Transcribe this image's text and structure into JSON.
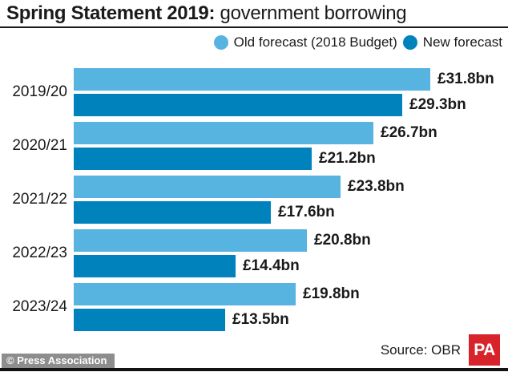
{
  "header": {
    "title_bold": "Spring Statement 2019:",
    "title_rest": " government borrowing"
  },
  "legend": {
    "items": [
      {
        "label": "Old forecast (2018 Budget)",
        "color": "#57b3df"
      },
      {
        "label": "New forecast",
        "color": "#0082bd"
      }
    ]
  },
  "chart_data": {
    "type": "bar",
    "orientation": "horizontal",
    "title": "Spring Statement 2019: government borrowing",
    "categories": [
      "2019/20",
      "2020/21",
      "2021/22",
      "2022/23",
      "2023/24"
    ],
    "series": [
      {
        "name": "Old forecast (2018 Budget)",
        "color": "#57b3df",
        "values": [
          31.8,
          26.7,
          23.8,
          20.8,
          19.8
        ],
        "labels": [
          "£31.8bn",
          "£26.7bn",
          "£23.8bn",
          "£20.8bn",
          "£19.8bn"
        ]
      },
      {
        "name": "New forecast",
        "color": "#0082bd",
        "values": [
          29.3,
          21.2,
          17.6,
          14.4,
          13.5
        ],
        "labels": [
          "£29.3bn",
          "£21.2bn",
          "£17.6bn",
          "£14.4bn",
          "£13.5bn"
        ]
      }
    ],
    "unit": "£bn",
    "xlim": [
      0,
      32
    ],
    "grid": false,
    "legend_position": "top-right",
    "value_labels": "end-of-bar"
  },
  "footer": {
    "source": "Source: OBR",
    "logo_text": "PA",
    "logo_color": "#d8232a"
  },
  "watermark": "© Press Association",
  "colors": {
    "old_forecast": "#57b3df",
    "new_forecast": "#0082bd",
    "text": "#1a1a1a",
    "pa_red": "#d8232a",
    "divider": "#1a1a1a"
  }
}
